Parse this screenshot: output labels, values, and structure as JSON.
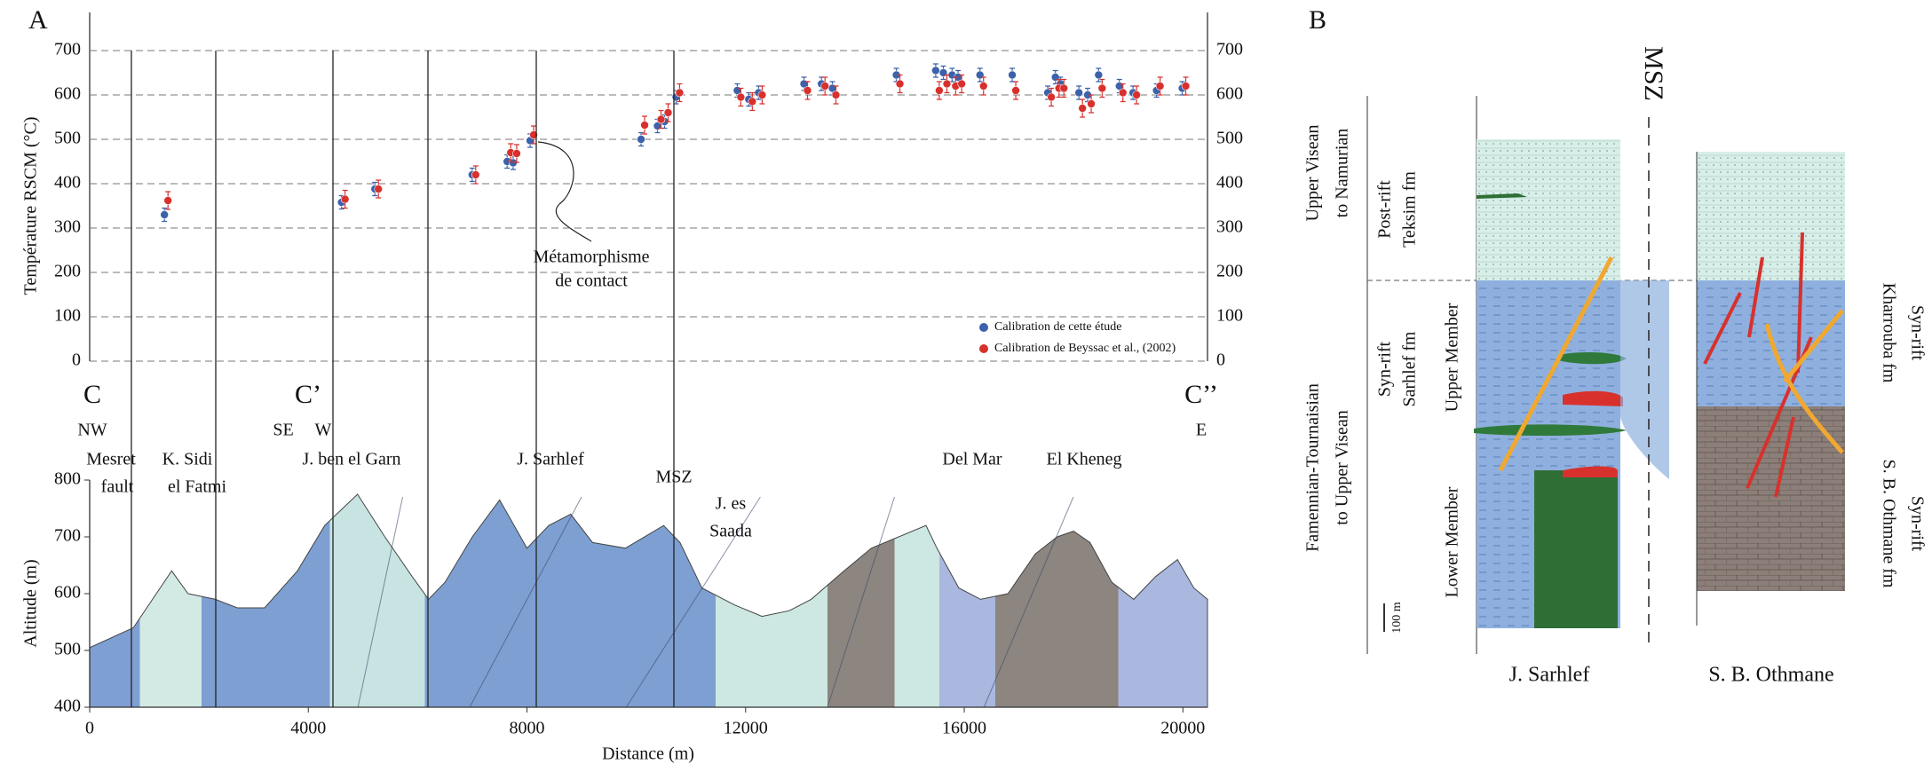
{
  "chart_data": [
    {
      "type": "scatter",
      "panel_label": "A",
      "ylabel": "Température RSCM (°C)",
      "xlim": [
        0,
        20450
      ],
      "ylim": [
        0,
        700
      ],
      "yticks": [
        0,
        100,
        200,
        300,
        400,
        500,
        600,
        700
      ],
      "grid": true,
      "annotation": [
        "Métamorphisme",
        "de contact"
      ],
      "legend": "lower right",
      "x": [
        1400,
        4640,
        5250,
        7030,
        7670,
        7780,
        8090,
        10120,
        10420,
        10550,
        10760,
        11880,
        12090,
        12270,
        13100,
        13420,
        13620,
        14790,
        15510,
        15650,
        15810,
        15920,
        16320,
        16910,
        17560,
        17700,
        17790,
        18130,
        18290,
        18490,
        18870,
        19120,
        19550,
        20020
      ],
      "series": [
        {
          "name": "Calibration de cette étude",
          "color": "#3b62aa",
          "error": 15,
          "values": [
            330,
            358,
            388,
            420,
            450,
            447,
            497,
            500,
            530,
            540,
            595,
            610,
            590,
            605,
            625,
            625,
            615,
            645,
            655,
            650,
            645,
            640,
            645,
            645,
            605,
            640,
            625,
            605,
            600,
            645,
            620,
            605,
            610,
            615
          ]
        },
        {
          "name": "Calibration de Beyssac et al., (2002)",
          "color": "#d8312d",
          "error": 20,
          "values": [
            362,
            365,
            388,
            420,
            470,
            468,
            510,
            532,
            545,
            560,
            605,
            595,
            585,
            600,
            610,
            620,
            600,
            625,
            610,
            625,
            620,
            625,
            620,
            610,
            595,
            615,
            615,
            570,
            580,
            615,
            605,
            600,
            620,
            620
          ]
        }
      ]
    },
    {
      "type": "area",
      "ylabel": "Altitude (m)",
      "xlabel": "Distance (m)",
      "xlim": [
        0,
        20450
      ],
      "ylim": [
        400,
        800
      ],
      "xticks": [
        0,
        4000,
        8000,
        12000,
        16000,
        20000
      ],
      "yticks": [
        400,
        500,
        600,
        700,
        800
      ],
      "color": "#7e9fd2",
      "x": [
        0,
        800,
        1500,
        1800,
        2300,
        2700,
        3200,
        3800,
        4300,
        4900,
        5400,
        5900,
        6200,
        6500,
        7000,
        7500,
        8000,
        8400,
        8800,
        9200,
        9800,
        10500,
        10800,
        11200,
        11800,
        12300,
        12800,
        13200,
        13800,
        14300,
        14800,
        15300,
        15500,
        15900,
        16300,
        16800,
        17300,
        17700,
        18000,
        18300,
        18700,
        19100,
        19500,
        19900,
        20200,
        20450
      ],
      "values": [
        505,
        540,
        640,
        600,
        590,
        575,
        575,
        640,
        720,
        775,
        700,
        630,
        590,
        620,
        700,
        765,
        680,
        720,
        740,
        690,
        680,
        720,
        690,
        610,
        580,
        560,
        570,
        590,
        640,
        680,
        700,
        720,
        680,
        610,
        590,
        600,
        670,
        700,
        710,
        690,
        620,
        590,
        630,
        660,
        610,
        590
      ],
      "section_labels": [
        "C",
        "NW",
        "Mesret",
        "fault",
        "K. Sidi",
        "el Fatmi",
        "C’",
        "SE",
        "W",
        "J. ben el Garn",
        "J. Sarhlef",
        "MSZ",
        "J. es",
        "Saada",
        "Del Mar",
        "El Kheneg",
        "C’’",
        "E"
      ]
    }
  ],
  "panel_b": {
    "label": "B",
    "fault": "MSZ",
    "ages": [
      "Upper Visean",
      "to Namurian",
      "Famennian-Tournaisian",
      "to Upper Visean"
    ],
    "formations": [
      "Post-rift",
      "Teksim fm",
      "Syn-rift",
      "Sarhlef fm"
    ],
    "members": [
      "Upper Member",
      "Lower Member"
    ],
    "scale": "100 m",
    "columns": [
      "J. Sarhlef",
      "S. B. Othmane"
    ],
    "right_formations": [
      "Syn-rift",
      "Kharrouba fm",
      "Syn-rift",
      "S. B. Othmane fm"
    ]
  }
}
